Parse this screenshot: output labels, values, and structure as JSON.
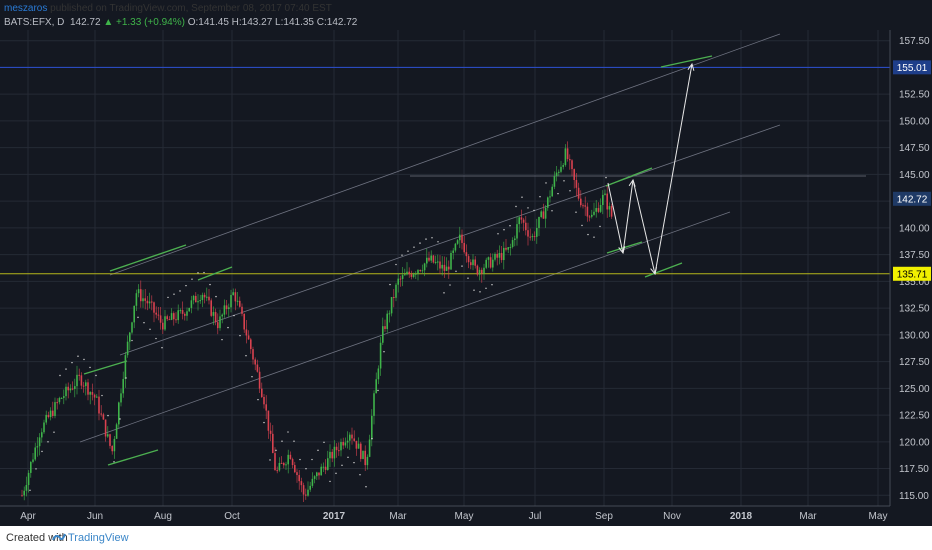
{
  "header": {
    "author": "meszaros",
    "published_text": "published on TradingView.com, September 08, 2017 07:40 EST"
  },
  "ohlc": {
    "symbol": "BATS:EFX, D",
    "last": "142.72",
    "change": "▲ +1.33 (+0.94%)",
    "open": "O:141.45",
    "high": "H:143.27",
    "low": "L:141.35",
    "close": "C:142.72"
  },
  "footer": {
    "created": "Created with",
    "brand": "TradingView",
    "logo_icon": "tradingview-logo-icon"
  },
  "colors": {
    "background": "#141821",
    "grid": "#252a35",
    "up": "#3fb44a",
    "down": "#d9424f",
    "channel": "#6e7280",
    "green_line": "#4caf50",
    "yellow_line": "#b3b51a",
    "blue_line": "#2b4fd2",
    "arrow": "#e8e8e8",
    "price_badge": "#1e3e8a",
    "current_badge": "#1f3a66",
    "yellow_badge": "#f2f000"
  },
  "chart_data": {
    "type": "candlestick",
    "x_ticks": [
      "Apr",
      "Jun",
      "Aug",
      "Oct",
      "2017",
      "Mar",
      "May",
      "Jul",
      "Sep",
      "Nov",
      "2018",
      "Mar",
      "May"
    ],
    "y_ticks": [
      "157.50",
      "155.00",
      "152.50",
      "150.00",
      "147.50",
      "145.00",
      "142.50",
      "140.00",
      "137.50",
      "135.00",
      "132.50",
      "130.00",
      "127.50",
      "125.00",
      "122.50",
      "120.00",
      "117.50",
      "115.00"
    ],
    "ylim": [
      114.0,
      158.5
    ],
    "grid": true,
    "price_labels": [
      {
        "label": "155.01",
        "value": 155.01,
        "style": "blue"
      },
      {
        "label": "142.72",
        "value": 142.72,
        "style": "current"
      },
      {
        "label": "135.71",
        "value": 135.71,
        "style": "yellow"
      }
    ],
    "horizontal_lines": [
      {
        "value": 155.01,
        "color": "blue"
      },
      {
        "value": 135.71,
        "color": "yellow"
      }
    ]
  }
}
